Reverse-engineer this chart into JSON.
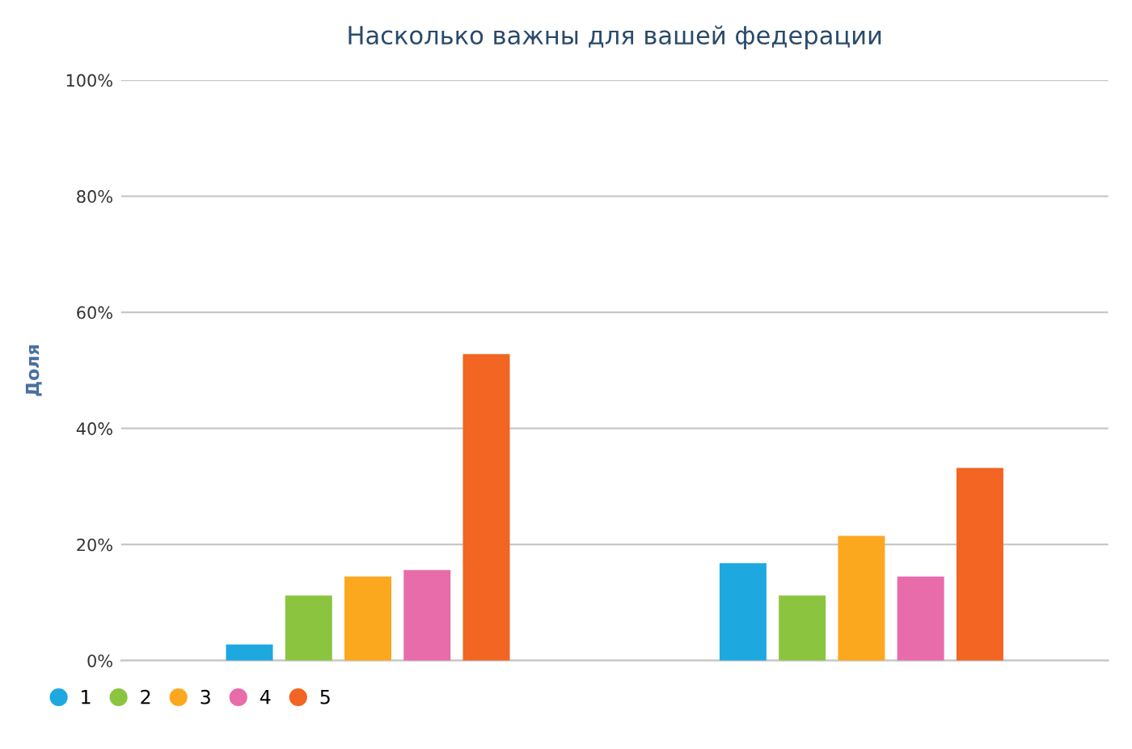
{
  "chart_data": {
    "type": "bar",
    "title": "Насколько важны для вашей федерации",
    "ylabel": "Доля",
    "categories": [
      null,
      null
    ],
    "series": [
      {
        "name": "1",
        "color": "#1ea8e0",
        "values": [
          2.8,
          16.8
        ]
      },
      {
        "name": "2",
        "color": "#8bc540",
        "values": [
          11.2,
          11.2
        ]
      },
      {
        "name": "3",
        "color": "#fba81f",
        "values": [
          14.5,
          21.5
        ]
      },
      {
        "name": "4",
        "color": "#e86caa",
        "values": [
          15.6,
          14.5
        ]
      },
      {
        "name": "5",
        "color": "#f26522",
        "values": [
          52.8,
          33.2
        ]
      }
    ],
    "ylim": [
      0,
      100
    ],
    "yticks": [
      {
        "value": 0,
        "label": "0%"
      },
      {
        "value": 20,
        "label": "20%"
      },
      {
        "value": 40,
        "label": "40%"
      },
      {
        "value": 60,
        "label": "60%"
      },
      {
        "value": 80,
        "label": "80%"
      },
      {
        "value": 100,
        "label": "100%"
      }
    ],
    "grid": "y",
    "legend": "bottom left"
  }
}
